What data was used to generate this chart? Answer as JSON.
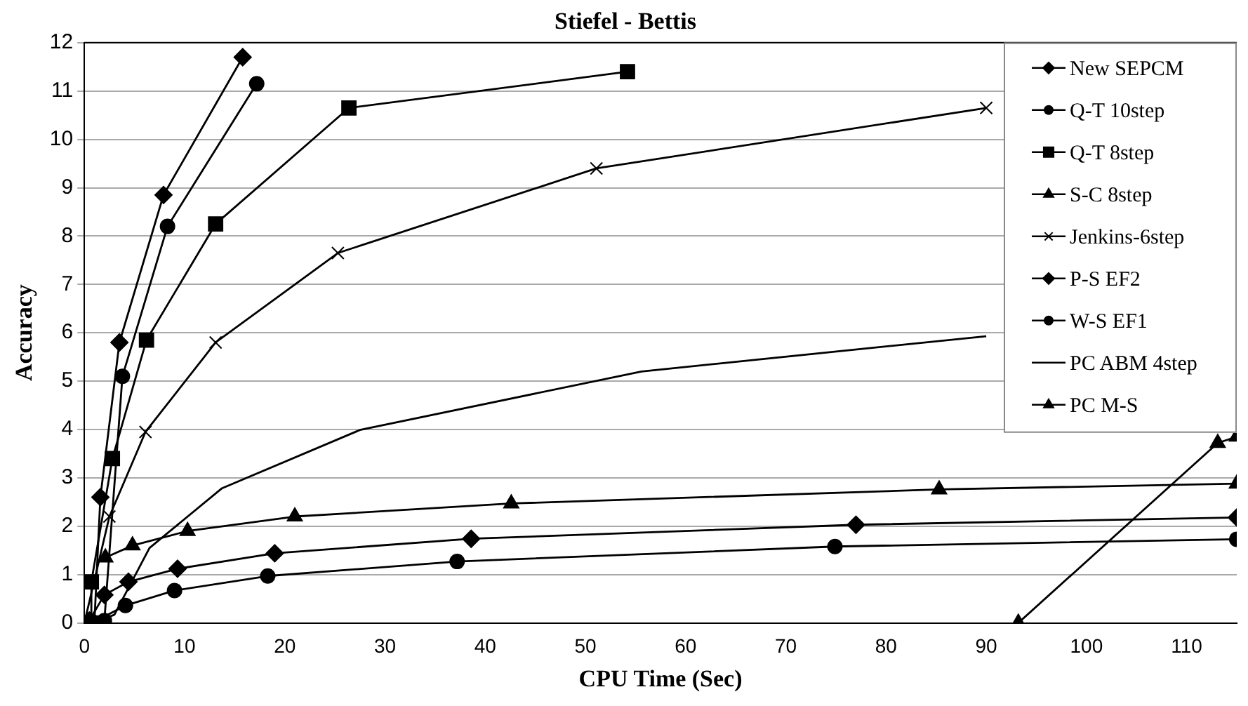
{
  "chart_data": {
    "type": "line",
    "title": "Stiefel - Bettis",
    "xlabel": "CPU Time (Sec)",
    "ylabel": "Accuracy",
    "xlim": [
      0,
      115
    ],
    "xticks": [
      0,
      10,
      20,
      30,
      40,
      50,
      60,
      70,
      80,
      90,
      100,
      110
    ],
    "ylim": [
      0,
      12
    ],
    "yticks": [
      0,
      1,
      2,
      3,
      4,
      5,
      6,
      7,
      8,
      9,
      10,
      11,
      12
    ],
    "grid": "y",
    "legend": "top right",
    "line_style": "solid",
    "series": [
      {
        "name": "New SEPCM",
        "color": "#000000",
        "marker": "diamond",
        "x": [
          1.0,
          1.6,
          3.5,
          7.9,
          15.8
        ],
        "values": [
          0.0,
          2.6,
          5.8,
          8.85,
          11.7
        ]
      },
      {
        "name": "Q-T 10step",
        "color": "#000000",
        "marker": "circle",
        "x": [
          0.3,
          2.0,
          3.8,
          8.3,
          17.2
        ],
        "values": [
          0.0,
          0.05,
          5.1,
          8.2,
          11.15
        ]
      },
      {
        "name": "Q-T 8step",
        "color": "#000000",
        "marker": "square",
        "x": [
          0.8,
          0.7,
          2.8,
          6.2,
          13.1,
          26.4,
          54.2
        ],
        "values": [
          0.0,
          0.85,
          3.4,
          5.85,
          8.25,
          10.65,
          11.4
        ]
      },
      {
        "name": "S-C 8step",
        "color": "#000000",
        "marker": "triangle",
        "x": [
          2.1,
          4.8,
          10.3,
          21.0,
          42.6,
          85.3,
          115
        ],
        "values": [
          1.35,
          1.6,
          1.9,
          2.2,
          2.47,
          2.76,
          2.88
        ]
      },
      {
        "name": "Jenkins-6step",
        "color": "#000000",
        "marker": "cross",
        "x": [
          0.0,
          2.5,
          6.1,
          13.1,
          25.3,
          51.1,
          90.0
        ],
        "values": [
          0.0,
          2.2,
          3.95,
          5.8,
          7.65,
          9.4,
          10.65
        ]
      },
      {
        "name": "P-S EF2",
        "color": "#000000",
        "marker": "diamond",
        "x": [
          0.5,
          2.0,
          4.4,
          9.3,
          19.0,
          38.6,
          77.0,
          115
        ],
        "values": [
          0.05,
          0.58,
          0.85,
          1.12,
          1.44,
          1.74,
          2.03,
          2.18
        ]
      },
      {
        "name": "W-S EF1",
        "color": "#000000",
        "marker": "circle",
        "x": [
          0.8,
          4.1,
          9.0,
          18.3,
          37.2,
          74.9,
          115
        ],
        "values": [
          0.0,
          0.36,
          0.67,
          0.97,
          1.27,
          1.58,
          1.73
        ]
      },
      {
        "name": "PC ABM 4step",
        "color": "#000000",
        "marker": "none",
        "x": [
          1.0,
          3.0,
          6.5,
          13.7,
          27.5,
          55.6,
          90.0
        ],
        "values": [
          0.0,
          0.17,
          1.55,
          2.78,
          3.99,
          5.2,
          5.93
        ]
      },
      {
        "name": "PC M-S",
        "color": "#000000",
        "marker": "triangle",
        "x": [
          93.2,
          113.1,
          115
        ],
        "values": [
          0.0,
          3.72,
          3.85
        ]
      }
    ]
  }
}
